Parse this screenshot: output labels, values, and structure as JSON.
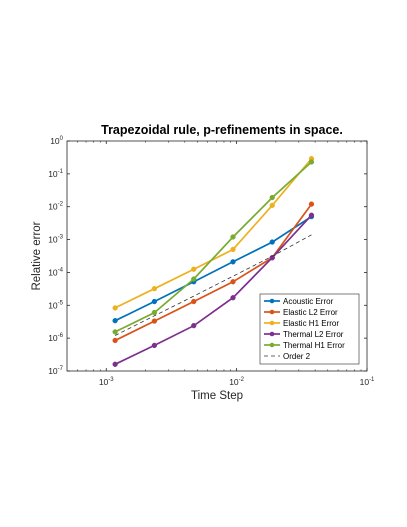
{
  "chart_data": {
    "type": "line",
    "title": "Trapezoidal rule, p-refinements in space.",
    "xlabel": "Time Step",
    "ylabel": "Relative error",
    "xscale": "log",
    "yscale": "log",
    "xlim": [
      0.0005,
      0.1
    ],
    "ylim": [
      1e-07,
      1
    ],
    "x_ticks": [
      {
        "base": "10",
        "exp": "-3",
        "value": 0.001
      },
      {
        "base": "10",
        "exp": "-2",
        "value": 0.01
      },
      {
        "base": "10",
        "exp": "-1",
        "value": 0.1
      }
    ],
    "y_ticks": [
      {
        "base": "10",
        "exp": "-7",
        "value": 1e-07
      },
      {
        "base": "10",
        "exp": "-6",
        "value": 1e-06
      },
      {
        "base": "10",
        "exp": "-5",
        "value": 1e-05
      },
      {
        "base": "10",
        "exp": "-4",
        "value": 0.0001
      },
      {
        "base": "10",
        "exp": "-3",
        "value": 0.001
      },
      {
        "base": "10",
        "exp": "-2",
        "value": 0.01
      },
      {
        "base": "10",
        "exp": "-1",
        "value": 0.1
      },
      {
        "base": "10",
        "exp": "0",
        "value": 1
      }
    ],
    "grid": false,
    "legend_position": "bottom-right",
    "x": [
      0.00117,
      0.00234,
      0.00469,
      0.00938,
      0.01875,
      0.0375
    ],
    "series": [
      {
        "name": "Acoustic Error",
        "color": "#0072BD",
        "marker": "circle",
        "values": [
          3.4e-06,
          1.3e-05,
          5.2e-05,
          0.00021,
          0.00084,
          0.005
        ]
      },
      {
        "name": "Elastic L2 Error",
        "color": "#D95319",
        "marker": "circle",
        "values": [
          8.5e-07,
          3.3e-06,
          1.3e-05,
          5.2e-05,
          0.00028,
          0.012
        ]
      },
      {
        "name": "Elastic H1 Error",
        "color": "#EDB120",
        "marker": "circle",
        "values": [
          8.3e-06,
          3.2e-05,
          0.000125,
          0.0005,
          0.011,
          0.29
        ]
      },
      {
        "name": "Thermal L2 Error",
        "color": "#7E2F8E",
        "marker": "circle",
        "values": [
          1.6e-07,
          6e-07,
          2.4e-06,
          1.7e-05,
          0.00028,
          0.0055
        ]
      },
      {
        "name": "Thermal H1 Error",
        "color": "#77AC30",
        "marker": "circle",
        "values": [
          1.55e-06,
          6e-06,
          6.3e-05,
          0.0012,
          0.019,
          0.23
        ]
      },
      {
        "name": "Order 2",
        "color": "#333333",
        "marker": "none",
        "dashed": true,
        "values": [
          1.2e-06,
          4.8e-06,
          1.9e-05,
          7.7e-05,
          0.00031,
          0.0014
        ]
      }
    ]
  }
}
